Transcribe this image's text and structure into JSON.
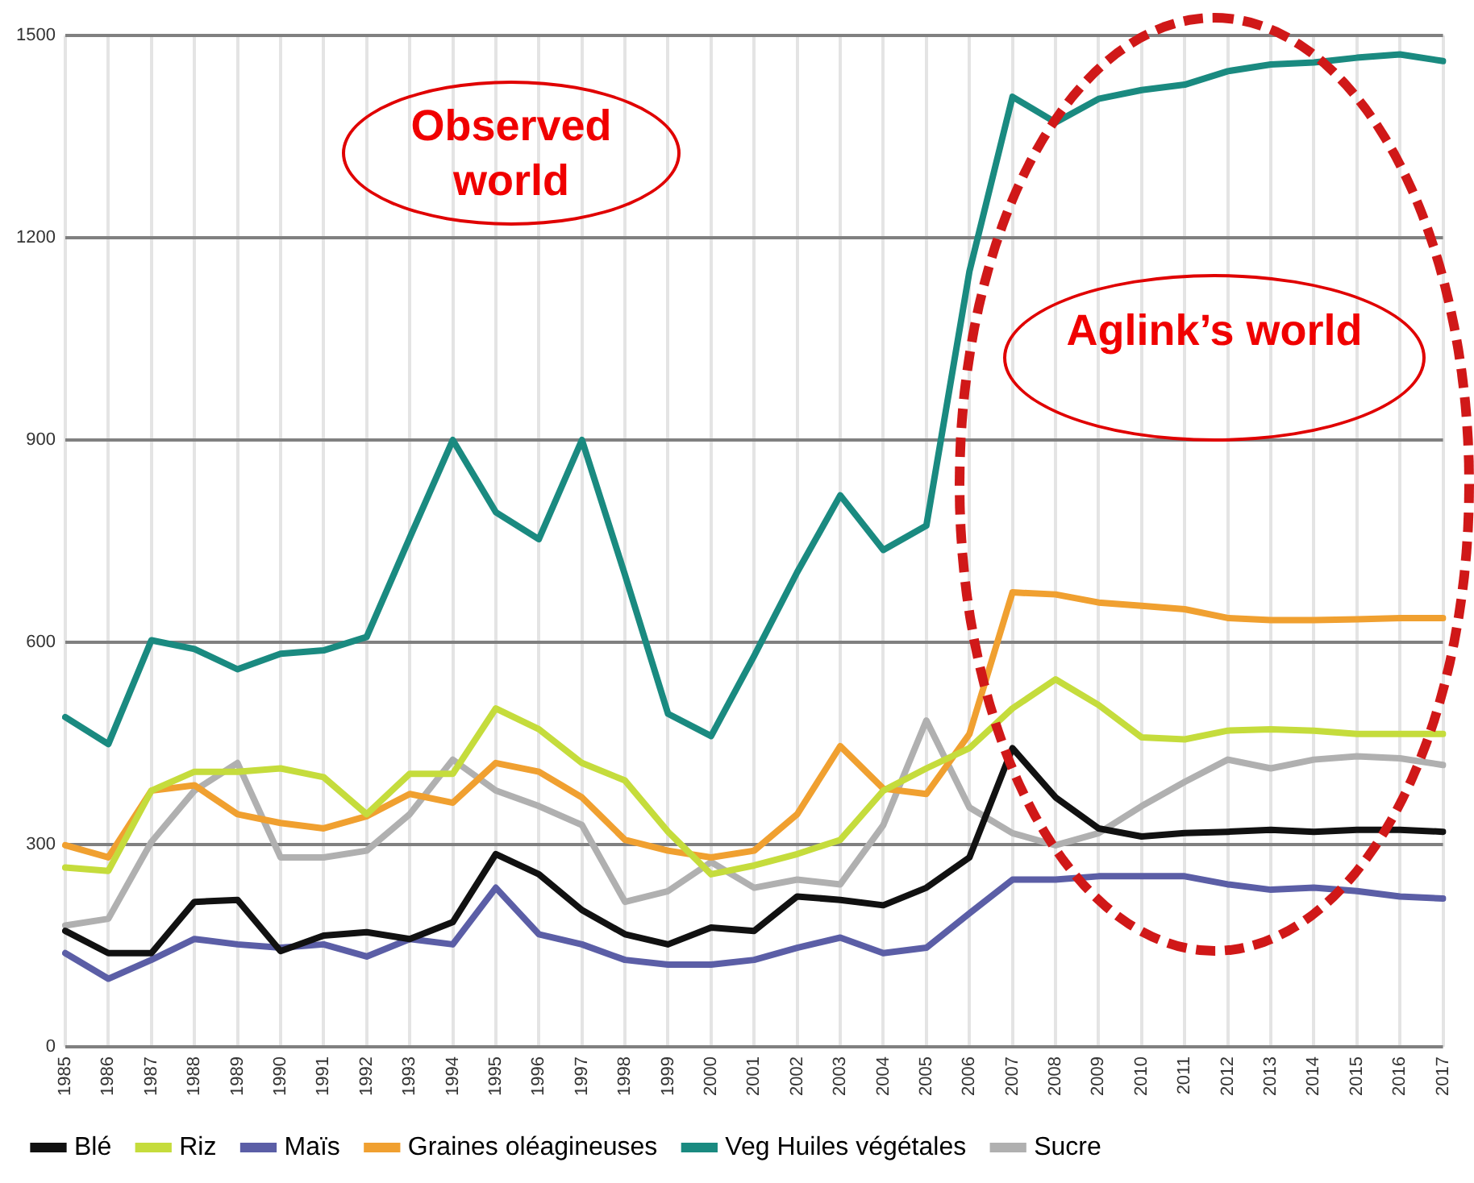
{
  "chart_data": {
    "type": "line",
    "categories": [
      "1985",
      "1986",
      "1987",
      "1988",
      "1989",
      "1990",
      "1991",
      "1992",
      "1993",
      "1994",
      "1995",
      "1996",
      "1997",
      "1998",
      "1999",
      "2000",
      "2001",
      "2002",
      "2003",
      "2004",
      "2005",
      "2006",
      "2007",
      "2008",
      "2009",
      "2010",
      "2011",
      "2012",
      "2013",
      "2014",
      "2015",
      "2016",
      "2017"
    ],
    "series": [
      {
        "name": "Blé",
        "color": "#111111",
        "values": [
          172,
          139,
          139,
          215,
          218,
          142,
          165,
          170,
          160,
          185,
          286,
          256,
          203,
          167,
          152,
          177,
          172,
          223,
          218,
          210,
          236,
          281,
          443,
          370,
          324,
          312,
          317,
          319,
          322,
          319,
          322,
          322,
          319
        ]
      },
      {
        "name": "Riz",
        "color": "#c5dc3c",
        "values": [
          266,
          261,
          380,
          408,
          408,
          413,
          400,
          345,
          405,
          405,
          502,
          471,
          421,
          395,
          319,
          256,
          269,
          286,
          307,
          380,
          413,
          443,
          502,
          545,
          507,
          459,
          456,
          469,
          471,
          469,
          464,
          464,
          464
        ]
      },
      {
        "name": "Maïs",
        "color": "#5b5ea6",
        "values": [
          139,
          101,
          129,
          160,
          152,
          147,
          152,
          134,
          160,
          152,
          236,
          167,
          152,
          129,
          122,
          122,
          129,
          147,
          162,
          139,
          147,
          198,
          248,
          248,
          253,
          253,
          253,
          241,
          233,
          236,
          231,
          223,
          220
        ]
      },
      {
        "name": "Graines oléagineuses",
        "color": "#f0a030",
        "values": [
          299,
          281,
          380,
          388,
          345,
          332,
          324,
          342,
          375,
          362,
          421,
          408,
          370,
          307,
          291,
          281,
          291,
          345,
          446,
          383,
          375,
          464,
          674,
          671,
          659,
          654,
          649,
          636,
          633,
          633,
          634,
          636,
          636
        ]
      },
      {
        "name": "Veg Huiles végétales",
        "color": "#1a8a80",
        "values": [
          489,
          449,
          603,
          590,
          560,
          583,
          588,
          608,
          755,
          900,
          793,
          753,
          900,
          700,
          494,
          461,
          580,
          704,
          818,
          737,
          773,
          1150,
          1409,
          1371,
          1406,
          1419,
          1427,
          1447,
          1457,
          1460,
          1467,
          1472,
          1462
        ]
      },
      {
        "name": "Sucre",
        "color": "#b0b0b0",
        "values": [
          180,
          190,
          304,
          380,
          421,
          281,
          281,
          291,
          345,
          426,
          380,
          357,
          329,
          215,
          231,
          274,
          236,
          248,
          241,
          329,
          484,
          355,
          317,
          299,
          317,
          357,
          393,
          426,
          413,
          426,
          431,
          428,
          418
        ]
      }
    ],
    "ylim": [
      0,
      1500
    ],
    "yticks": [
      0,
      300,
      600,
      900,
      1200,
      1500
    ],
    "grid": true,
    "legend": "bottom",
    "marker": "none",
    "line_style": "solid",
    "annotations": [
      "Observed world",
      "Aglink’s world"
    ]
  }
}
